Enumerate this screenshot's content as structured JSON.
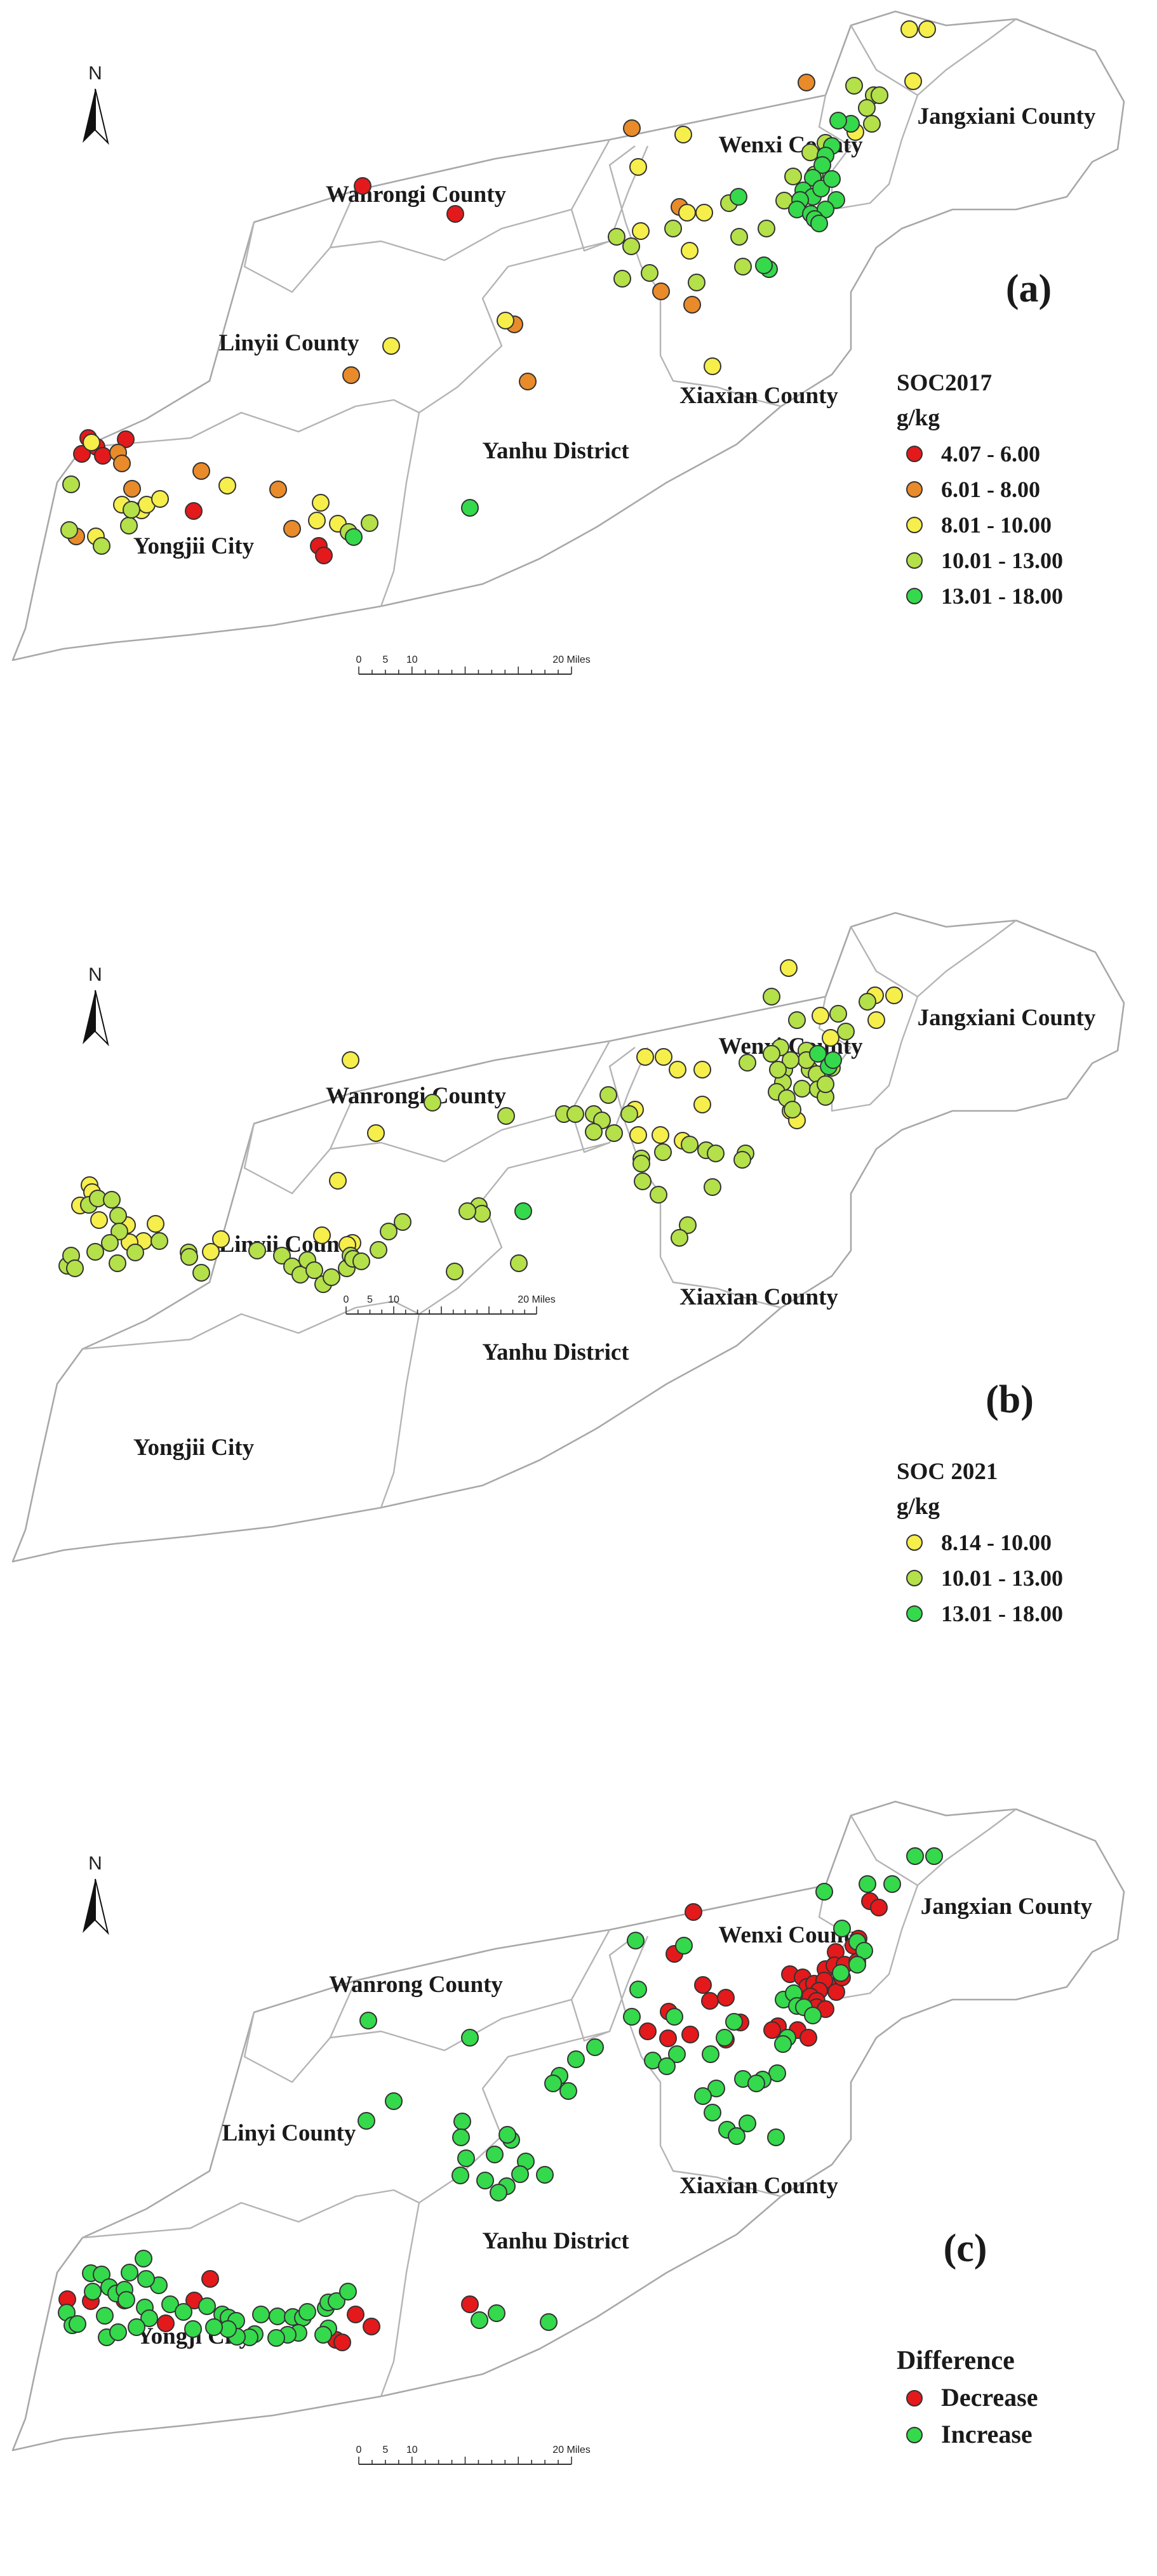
{
  "maps": [
    {
      "id": "a",
      "panel_label": "(a)",
      "north": "N",
      "legend": {
        "title": "SOC2017",
        "unit": "g/kg",
        "classes": [
          {
            "label": "4.07 - 6.00",
            "color": "#e4191b"
          },
          {
            "label": "6.01 - 8.00",
            "color": "#e98b2a"
          },
          {
            "label": "8.01 - 10.00",
            "color": "#f6ee4a"
          },
          {
            "label": "10.01 - 13.00",
            "color": "#b4e04a"
          },
          {
            "label": "13.01 - 18.00",
            "color": "#35d94c"
          }
        ]
      },
      "regions": {
        "wanrong": "Wanrongi County",
        "wenxi": "Wenxi County",
        "jiangxian": "Jangxiani County",
        "linyi": "Linyii County",
        "xiaxian": "Xiaxian County",
        "yanhu": "Yanhu District",
        "yongji": "Yongjii City"
      },
      "scale_ticks": [
        "0",
        "5",
        "10",
        "20 Miles"
      ]
    },
    {
      "id": "b",
      "panel_label": "(b)",
      "north": "N",
      "legend": {
        "title": "SOC 2021",
        "unit": "g/kg",
        "classes": [
          {
            "label": "8.14 - 10.00",
            "color": "#f6ee4a"
          },
          {
            "label": "10.01 - 13.00",
            "color": "#b4e04a"
          },
          {
            "label": "13.01 - 18.00",
            "color": "#35d94c"
          }
        ]
      },
      "regions": {
        "wanrong": "Wanrongi County",
        "wenxi": "Wenxi County",
        "jiangxian": "Jangxiani County",
        "linyi": "Linyii County",
        "xiaxian": "Xiaxian County",
        "yanhu": "Yanhu District",
        "yongji": "Yongjii City"
      },
      "scale_ticks": [
        "0",
        "5",
        "10",
        "20 Miles"
      ]
    },
    {
      "id": "c",
      "panel_label": "(c)",
      "north": "N",
      "legend": {
        "title": "Difference",
        "unit": "",
        "classes": [
          {
            "label": "Decrease",
            "color": "#e4191b"
          },
          {
            "label": "Increase",
            "color": "#35d94c"
          }
        ]
      },
      "regions": {
        "wanrong": "Wanrong County",
        "wenxi": "Wenxi County",
        "jiangxian": "Jangxian County",
        "linyi": "Linyi County",
        "xiaxian": "Xiaxian County",
        "yanhu": "Yanhu District",
        "yongji": "Yongji City"
      },
      "scale_ticks": [
        "0",
        "5",
        "10",
        "20 Miles"
      ]
    }
  ]
}
